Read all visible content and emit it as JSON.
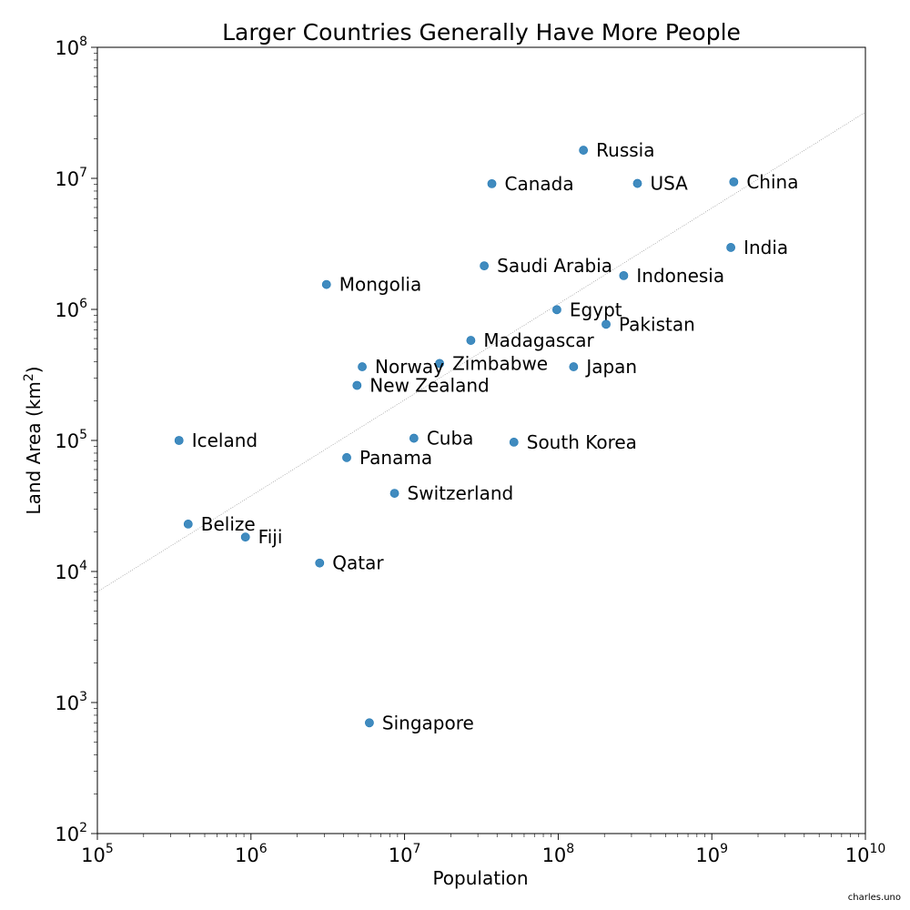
{
  "chart_data": {
    "type": "scatter",
    "title": "Larger Countries Generally Have More People",
    "xlabel": "Population",
    "ylabel": "Land Area (km",
    "ylabel_sup": "2",
    "ylabel_end": ")",
    "xscale": "log",
    "yscale": "log",
    "xlim": [
      100000,
      10000000000
    ],
    "ylim": [
      100,
      100000000
    ],
    "x_ticks": [
      {
        "base": "10",
        "exp": "5",
        "value": 100000
      },
      {
        "base": "10",
        "exp": "6",
        "value": 1000000
      },
      {
        "base": "10",
        "exp": "7",
        "value": 10000000
      },
      {
        "base": "10",
        "exp": "8",
        "value": 100000000
      },
      {
        "base": "10",
        "exp": "9",
        "value": 1000000000
      },
      {
        "base": "10",
        "exp": "10",
        "value": 10000000000
      }
    ],
    "y_ticks": [
      {
        "base": "10",
        "exp": "2",
        "value": 100
      },
      {
        "base": "10",
        "exp": "3",
        "value": 1000
      },
      {
        "base": "10",
        "exp": "4",
        "value": 10000
      },
      {
        "base": "10",
        "exp": "5",
        "value": 100000
      },
      {
        "base": "10",
        "exp": "6",
        "value": 1000000
      },
      {
        "base": "10",
        "exp": "7",
        "value": 10000000
      },
      {
        "base": "10",
        "exp": "8",
        "value": 100000000
      }
    ],
    "grid": false,
    "marker_color": "#1f77b4",
    "trend_line": {
      "x": [
        100000,
        10000000000
      ],
      "y": [
        7000,
        32000000
      ]
    },
    "points": [
      {
        "label": "Russia",
        "x": 146000000,
        "y": 16400000
      },
      {
        "label": "Canada",
        "x": 37000000,
        "y": 9100000
      },
      {
        "label": "USA",
        "x": 328000000,
        "y": 9150000
      },
      {
        "label": "China",
        "x": 1390000000,
        "y": 9400000
      },
      {
        "label": "India",
        "x": 1330000000,
        "y": 2970000
      },
      {
        "label": "Saudi Arabia",
        "x": 33000000,
        "y": 2150000
      },
      {
        "label": "Indonesia",
        "x": 267000000,
        "y": 1810000
      },
      {
        "label": "Mongolia",
        "x": 3100000,
        "y": 1550000
      },
      {
        "label": "Egypt",
        "x": 98000000,
        "y": 995000
      },
      {
        "label": "Pakistan",
        "x": 205000000,
        "y": 770000
      },
      {
        "label": "Madagascar",
        "x": 27000000,
        "y": 580000
      },
      {
        "label": "Zimbabwe",
        "x": 16900000,
        "y": 387000
      },
      {
        "label": "Norway",
        "x": 5300000,
        "y": 365000
      },
      {
        "label": "Japan",
        "x": 126000000,
        "y": 365000
      },
      {
        "label": "New Zealand",
        "x": 4900000,
        "y": 263000
      },
      {
        "label": "Iceland",
        "x": 340000,
        "y": 100000
      },
      {
        "label": "Cuba",
        "x": 11500000,
        "y": 104000
      },
      {
        "label": "South Korea",
        "x": 51500000,
        "y": 97000
      },
      {
        "label": "Panama",
        "x": 4200000,
        "y": 74000
      },
      {
        "label": "Switzerland",
        "x": 8600000,
        "y": 39500
      },
      {
        "label": "Belize",
        "x": 390000,
        "y": 23000
      },
      {
        "label": "Fiji",
        "x": 920000,
        "y": 18300
      },
      {
        "label": "Qatar",
        "x": 2800000,
        "y": 11600
      },
      {
        "label": "Singapore",
        "x": 5900000,
        "y": 700
      }
    ]
  },
  "credit": "charles.uno"
}
